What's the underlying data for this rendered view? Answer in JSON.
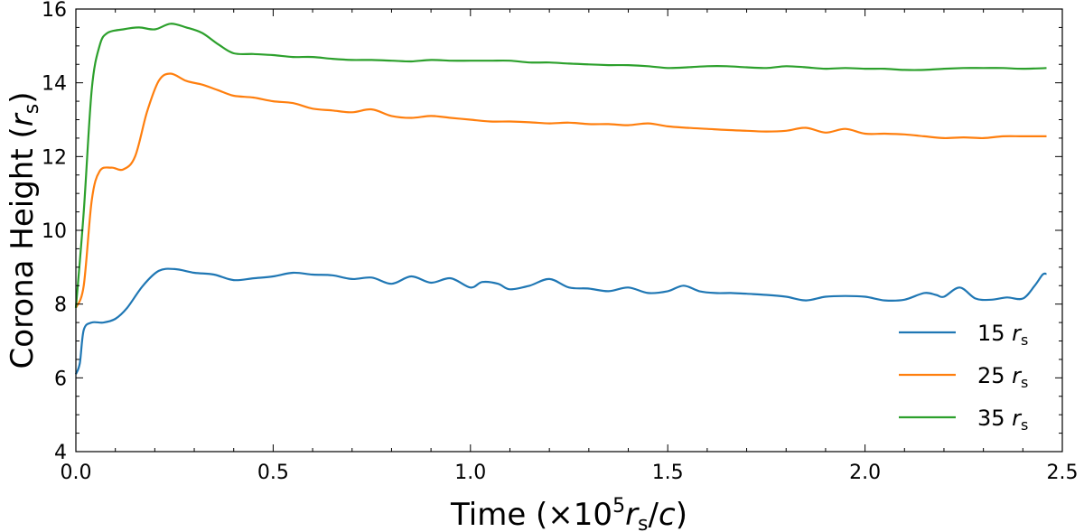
{
  "chart_data": {
    "type": "line",
    "xlabel_parts": {
      "pre": "Time (×10",
      "exp": "5",
      "r": "r",
      "sub": "s",
      "post_slash": "/",
      "c": "c",
      "close": ")"
    },
    "ylabel_parts": {
      "pre": "Corona Height (",
      "r": "r",
      "sub": "s",
      "close": ")"
    },
    "xlim": [
      0.0,
      2.5
    ],
    "ylim": [
      4,
      16
    ],
    "xticks": [
      0.0,
      0.5,
      1.0,
      1.5,
      2.0,
      2.5
    ],
    "xtick_labels": [
      "0.0",
      "0.5",
      "1.0",
      "1.5",
      "2.0",
      "2.5"
    ],
    "yticks": [
      4,
      6,
      8,
      10,
      12,
      14,
      16
    ],
    "ytick_labels": [
      "4",
      "6",
      "8",
      "10",
      "12",
      "14",
      "16"
    ],
    "legend_position": "bottom-right",
    "grid": false,
    "series": [
      {
        "name": "15 rs",
        "legend_num": "15",
        "color": "#1f77b4",
        "points": [
          [
            0.0,
            6.1
          ],
          [
            0.01,
            6.4
          ],
          [
            0.02,
            7.3
          ],
          [
            0.04,
            7.5
          ],
          [
            0.07,
            7.5
          ],
          [
            0.1,
            7.6
          ],
          [
            0.13,
            7.9
          ],
          [
            0.17,
            8.5
          ],
          [
            0.21,
            8.9
          ],
          [
            0.25,
            8.95
          ],
          [
            0.3,
            8.85
          ],
          [
            0.35,
            8.8
          ],
          [
            0.4,
            8.65
          ],
          [
            0.45,
            8.7
          ],
          [
            0.5,
            8.75
          ],
          [
            0.55,
            8.85
          ],
          [
            0.6,
            8.8
          ],
          [
            0.65,
            8.78
          ],
          [
            0.7,
            8.68
          ],
          [
            0.75,
            8.72
          ],
          [
            0.8,
            8.55
          ],
          [
            0.85,
            8.75
          ],
          [
            0.9,
            8.58
          ],
          [
            0.95,
            8.7
          ],
          [
            1.0,
            8.45
          ],
          [
            1.03,
            8.6
          ],
          [
            1.07,
            8.55
          ],
          [
            1.1,
            8.4
          ],
          [
            1.15,
            8.5
          ],
          [
            1.2,
            8.68
          ],
          [
            1.25,
            8.45
          ],
          [
            1.3,
            8.42
          ],
          [
            1.35,
            8.35
          ],
          [
            1.4,
            8.45
          ],
          [
            1.45,
            8.3
          ],
          [
            1.5,
            8.35
          ],
          [
            1.54,
            8.5
          ],
          [
            1.58,
            8.35
          ],
          [
            1.62,
            8.3
          ],
          [
            1.66,
            8.3
          ],
          [
            1.7,
            8.28
          ],
          [
            1.75,
            8.25
          ],
          [
            1.8,
            8.2
          ],
          [
            1.85,
            8.1
          ],
          [
            1.9,
            8.2
          ],
          [
            1.95,
            8.22
          ],
          [
            2.0,
            8.2
          ],
          [
            2.05,
            8.1
          ],
          [
            2.1,
            8.12
          ],
          [
            2.15,
            8.3
          ],
          [
            2.18,
            8.25
          ],
          [
            2.2,
            8.2
          ],
          [
            2.24,
            8.45
          ],
          [
            2.28,
            8.15
          ],
          [
            2.32,
            8.12
          ],
          [
            2.36,
            8.18
          ],
          [
            2.4,
            8.15
          ],
          [
            2.43,
            8.5
          ],
          [
            2.45,
            8.8
          ],
          [
            2.46,
            8.82
          ]
        ]
      },
      {
        "name": "25 rs",
        "legend_num": "25",
        "color": "#ff7f0e",
        "points": [
          [
            0.0,
            7.9
          ],
          [
            0.02,
            8.5
          ],
          [
            0.04,
            10.8
          ],
          [
            0.06,
            11.6
          ],
          [
            0.09,
            11.7
          ],
          [
            0.12,
            11.65
          ],
          [
            0.15,
            12.0
          ],
          [
            0.18,
            13.2
          ],
          [
            0.21,
            14.05
          ],
          [
            0.24,
            14.25
          ],
          [
            0.28,
            14.05
          ],
          [
            0.32,
            13.95
          ],
          [
            0.36,
            13.8
          ],
          [
            0.4,
            13.65
          ],
          [
            0.45,
            13.6
          ],
          [
            0.5,
            13.5
          ],
          [
            0.55,
            13.45
          ],
          [
            0.6,
            13.3
          ],
          [
            0.65,
            13.25
          ],
          [
            0.7,
            13.2
          ],
          [
            0.75,
            13.28
          ],
          [
            0.8,
            13.1
          ],
          [
            0.85,
            13.05
          ],
          [
            0.9,
            13.1
          ],
          [
            0.95,
            13.05
          ],
          [
            1.0,
            13.0
          ],
          [
            1.05,
            12.95
          ],
          [
            1.1,
            12.95
          ],
          [
            1.15,
            12.93
          ],
          [
            1.2,
            12.9
          ],
          [
            1.25,
            12.92
          ],
          [
            1.3,
            12.88
          ],
          [
            1.35,
            12.88
          ],
          [
            1.4,
            12.85
          ],
          [
            1.45,
            12.9
          ],
          [
            1.5,
            12.82
          ],
          [
            1.55,
            12.78
          ],
          [
            1.6,
            12.75
          ],
          [
            1.65,
            12.72
          ],
          [
            1.7,
            12.7
          ],
          [
            1.75,
            12.68
          ],
          [
            1.8,
            12.7
          ],
          [
            1.85,
            12.78
          ],
          [
            1.9,
            12.65
          ],
          [
            1.95,
            12.75
          ],
          [
            2.0,
            12.62
          ],
          [
            2.05,
            12.62
          ],
          [
            2.1,
            12.6
          ],
          [
            2.15,
            12.55
          ],
          [
            2.2,
            12.5
          ],
          [
            2.25,
            12.52
          ],
          [
            2.3,
            12.5
          ],
          [
            2.35,
            12.55
          ],
          [
            2.4,
            12.55
          ],
          [
            2.46,
            12.55
          ]
        ]
      },
      {
        "name": "35 rs",
        "legend_num": "35",
        "color": "#2ca02c",
        "points": [
          [
            0.0,
            7.9
          ],
          [
            0.02,
            10.5
          ],
          [
            0.04,
            13.8
          ],
          [
            0.06,
            15.0
          ],
          [
            0.08,
            15.35
          ],
          [
            0.12,
            15.45
          ],
          [
            0.16,
            15.5
          ],
          [
            0.2,
            15.45
          ],
          [
            0.24,
            15.6
          ],
          [
            0.28,
            15.5
          ],
          [
            0.32,
            15.35
          ],
          [
            0.36,
            15.05
          ],
          [
            0.4,
            14.8
          ],
          [
            0.45,
            14.78
          ],
          [
            0.5,
            14.75
          ],
          [
            0.55,
            14.7
          ],
          [
            0.6,
            14.7
          ],
          [
            0.65,
            14.65
          ],
          [
            0.7,
            14.62
          ],
          [
            0.75,
            14.62
          ],
          [
            0.8,
            14.6
          ],
          [
            0.85,
            14.58
          ],
          [
            0.9,
            14.62
          ],
          [
            0.95,
            14.6
          ],
          [
            1.0,
            14.6
          ],
          [
            1.05,
            14.6
          ],
          [
            1.1,
            14.6
          ],
          [
            1.15,
            14.55
          ],
          [
            1.2,
            14.55
          ],
          [
            1.25,
            14.52
          ],
          [
            1.3,
            14.5
          ],
          [
            1.35,
            14.48
          ],
          [
            1.4,
            14.48
          ],
          [
            1.45,
            14.45
          ],
          [
            1.5,
            14.4
          ],
          [
            1.55,
            14.42
          ],
          [
            1.6,
            14.45
          ],
          [
            1.65,
            14.45
          ],
          [
            1.7,
            14.42
          ],
          [
            1.75,
            14.4
          ],
          [
            1.8,
            14.45
          ],
          [
            1.85,
            14.42
          ],
          [
            1.9,
            14.38
          ],
          [
            1.95,
            14.4
          ],
          [
            2.0,
            14.38
          ],
          [
            2.05,
            14.38
          ],
          [
            2.1,
            14.35
          ],
          [
            2.15,
            14.35
          ],
          [
            2.2,
            14.38
          ],
          [
            2.25,
            14.4
          ],
          [
            2.3,
            14.4
          ],
          [
            2.35,
            14.4
          ],
          [
            2.4,
            14.38
          ],
          [
            2.46,
            14.4
          ]
        ]
      }
    ]
  }
}
